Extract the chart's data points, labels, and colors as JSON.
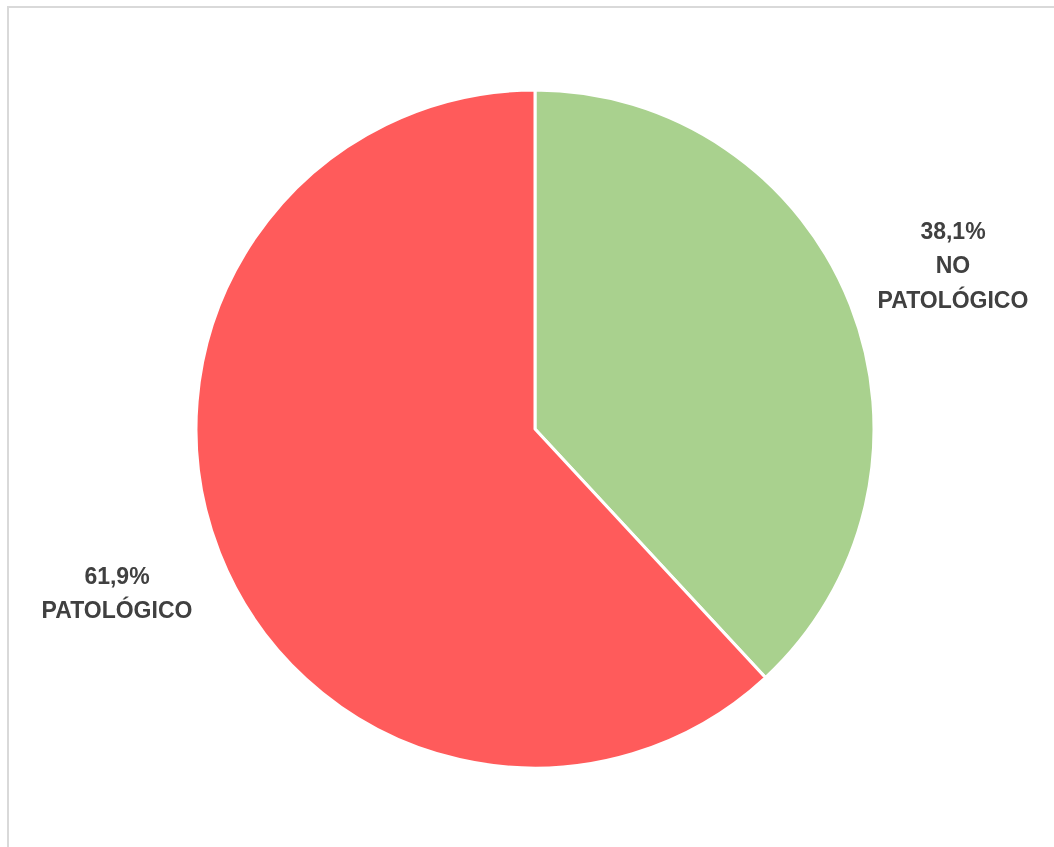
{
  "chart_data": {
    "type": "pie",
    "categories": [
      "NO PATOLÓGICO",
      "PATOLÓGICO"
    ],
    "values": [
      38.1,
      61.9
    ],
    "colors": [
      "#a9d18e",
      "#ff5b5b"
    ],
    "value_labels": [
      "38,1%",
      "61,9%"
    ]
  }
}
